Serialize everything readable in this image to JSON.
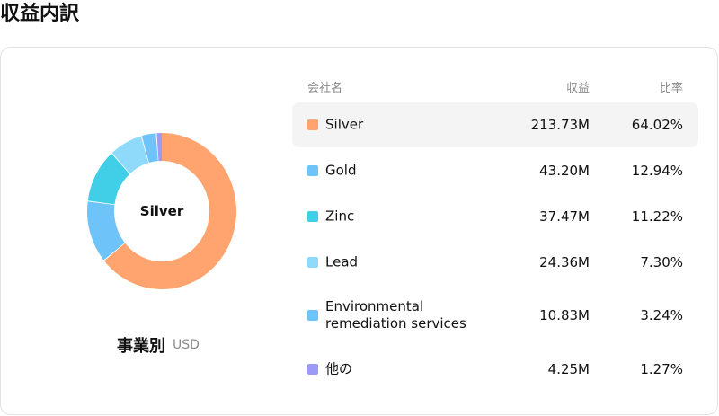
{
  "title": "収益内訳",
  "chart_caption": {
    "label": "事業別",
    "unit": "USD"
  },
  "donut_center_label": "Silver",
  "table": {
    "headers": {
      "name": "会社名",
      "revenue": "収益",
      "ratio": "比率"
    },
    "rows": [
      {
        "name": "Silver",
        "revenue": "213.73M",
        "ratio": "64.02%",
        "color": "#FFA46E",
        "selected": true
      },
      {
        "name": "Gold",
        "revenue": "43.20M",
        "ratio": "12.94%",
        "color": "#6EC3F9",
        "selected": false
      },
      {
        "name": "Zinc",
        "revenue": "37.47M",
        "ratio": "11.22%",
        "color": "#40CFE6",
        "selected": false
      },
      {
        "name": "Lead",
        "revenue": "24.36M",
        "ratio": "7.30%",
        "color": "#8FDAFA",
        "selected": false
      },
      {
        "name": "Environmental remediation services",
        "name_lines": [
          "Environmental",
          "remediation services"
        ],
        "revenue": "10.83M",
        "ratio": "3.24%",
        "color": "#6EC3F9",
        "selected": false
      },
      {
        "name": "他の",
        "revenue": "4.25M",
        "ratio": "1.27%",
        "color": "#9B9BF5",
        "selected": false
      }
    ]
  },
  "chart_data": {
    "type": "pie",
    "categories": [
      "Silver",
      "Gold",
      "Zinc",
      "Lead",
      "Environmental remediation services",
      "他の"
    ],
    "values": [
      64.02,
      12.94,
      11.22,
      7.3,
      3.24,
      1.27
    ],
    "colors": [
      "#FFA46E",
      "#6EC3F9",
      "#40CFE6",
      "#8FDAFA",
      "#6EC3F9",
      "#9B9BF5"
    ],
    "title": "事業別"
  }
}
